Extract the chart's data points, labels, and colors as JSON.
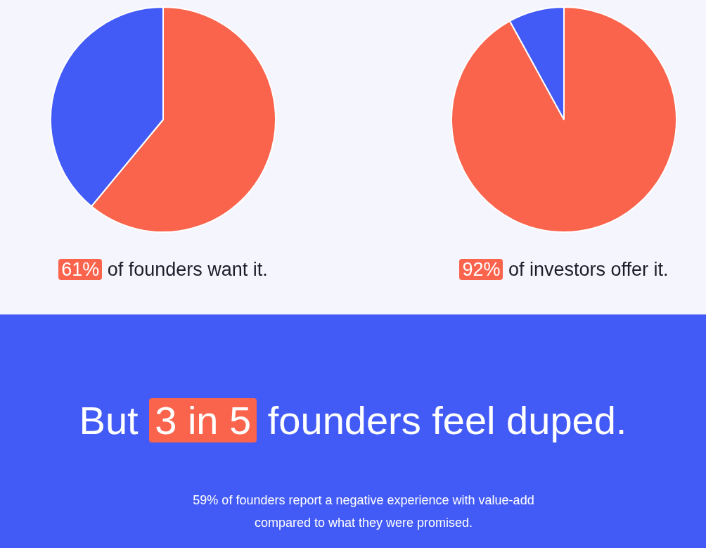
{
  "chart_data": [
    {
      "type": "pie",
      "categories": [
        null,
        null
      ],
      "values": [
        61,
        39
      ],
      "colors": [
        "#fa634c",
        "#435bf6"
      ],
      "legend": false,
      "annotations": [
        "61% of founders want it."
      ]
    },
    {
      "type": "pie",
      "categories": [
        null,
        null
      ],
      "values": [
        92,
        8
      ],
      "colors": [
        "#fa634c",
        "#435bf6"
      ],
      "legend": false,
      "annotations": [
        "92% of investors offer it."
      ]
    },
    {
      "type": "other",
      "title": "But 3 in 5 founders feel duped.",
      "subtitle": "59% of founders report a negative experience with value-add compared to what they were promised."
    }
  ]
}
